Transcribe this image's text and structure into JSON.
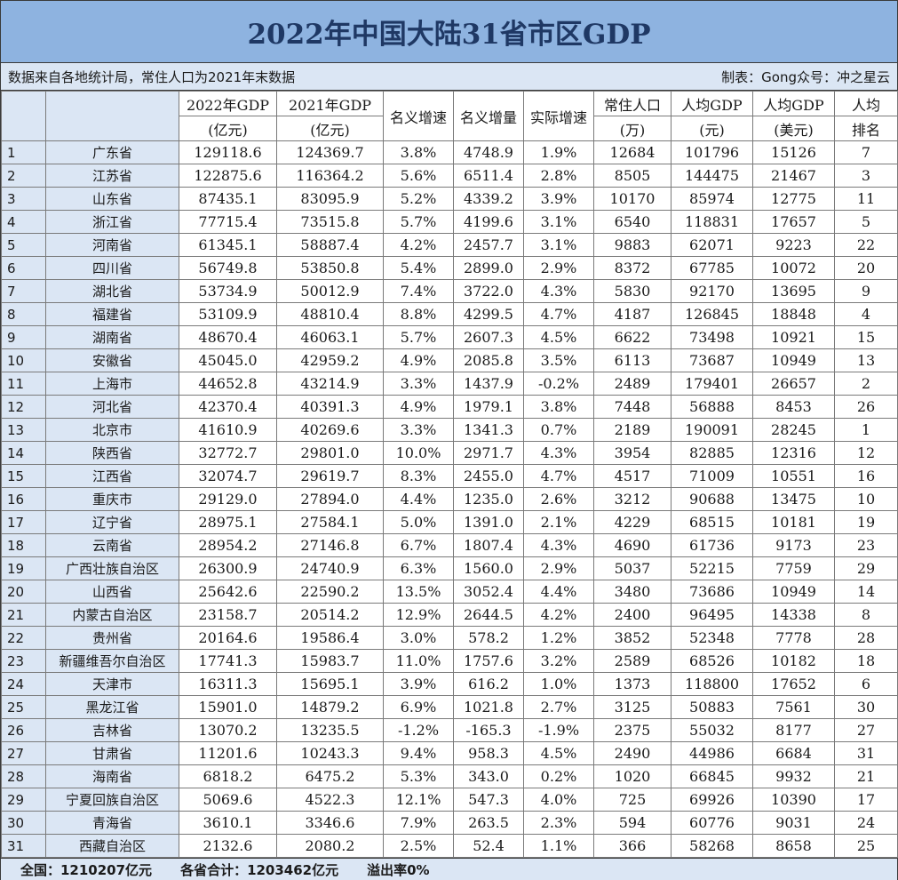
{
  "title": "2022年中国大陆31省市区GDP",
  "info": {
    "source": "数据来自各地统计局，常住人口为2021年末数据",
    "credit": "制表：Gong众号：冲之星云"
  },
  "headers": {
    "h0": "",
    "h1": "",
    "gdp2022_a": "2022年GDP",
    "gdp2022_b": "(亿元)",
    "gdp2021_a": "2021年GDP",
    "gdp2021_b": "(亿元)",
    "nominal_growth": "名义增速",
    "nominal_increase": "名义增量",
    "real_growth": "实际增速",
    "pop_a": "常住人口",
    "pop_b": "(万)",
    "pc_cny_a": "人均GDP",
    "pc_cny_b": "(元)",
    "pc_usd_a": "人均GDP",
    "pc_usd_b": "(美元)",
    "rank_a": "人均",
    "rank_b": "排名"
  },
  "rows": [
    [
      "1",
      "广东省",
      "129118.6",
      "124369.7",
      "3.8%",
      "4748.9",
      "1.9%",
      "12684",
      "101796",
      "15126",
      "7"
    ],
    [
      "2",
      "江苏省",
      "122875.6",
      "116364.2",
      "5.6%",
      "6511.4",
      "2.8%",
      "8505",
      "144475",
      "21467",
      "3"
    ],
    [
      "3",
      "山东省",
      "87435.1",
      "83095.9",
      "5.2%",
      "4339.2",
      "3.9%",
      "10170",
      "85974",
      "12775",
      "11"
    ],
    [
      "4",
      "浙江省",
      "77715.4",
      "73515.8",
      "5.7%",
      "4199.6",
      "3.1%",
      "6540",
      "118831",
      "17657",
      "5"
    ],
    [
      "5",
      "河南省",
      "61345.1",
      "58887.4",
      "4.2%",
      "2457.7",
      "3.1%",
      "9883",
      "62071",
      "9223",
      "22"
    ],
    [
      "6",
      "四川省",
      "56749.8",
      "53850.8",
      "5.4%",
      "2899.0",
      "2.9%",
      "8372",
      "67785",
      "10072",
      "20"
    ],
    [
      "7",
      "湖北省",
      "53734.9",
      "50012.9",
      "7.4%",
      "3722.0",
      "4.3%",
      "5830",
      "92170",
      "13695",
      "9"
    ],
    [
      "8",
      "福建省",
      "53109.9",
      "48810.4",
      "8.8%",
      "4299.5",
      "4.7%",
      "4187",
      "126845",
      "18848",
      "4"
    ],
    [
      "9",
      "湖南省",
      "48670.4",
      "46063.1",
      "5.7%",
      "2607.3",
      "4.5%",
      "6622",
      "73498",
      "10921",
      "15"
    ],
    [
      "10",
      "安徽省",
      "45045.0",
      "42959.2",
      "4.9%",
      "2085.8",
      "3.5%",
      "6113",
      "73687",
      "10949",
      "13"
    ],
    [
      "11",
      "上海市",
      "44652.8",
      "43214.9",
      "3.3%",
      "1437.9",
      "-0.2%",
      "2489",
      "179401",
      "26657",
      "2"
    ],
    [
      "12",
      "河北省",
      "42370.4",
      "40391.3",
      "4.9%",
      "1979.1",
      "3.8%",
      "7448",
      "56888",
      "8453",
      "26"
    ],
    [
      "13",
      "北京市",
      "41610.9",
      "40269.6",
      "3.3%",
      "1341.3",
      "0.7%",
      "2189",
      "190091",
      "28245",
      "1"
    ],
    [
      "14",
      "陕西省",
      "32772.7",
      "29801.0",
      "10.0%",
      "2971.7",
      "4.3%",
      "3954",
      "82885",
      "12316",
      "12"
    ],
    [
      "15",
      "江西省",
      "32074.7",
      "29619.7",
      "8.3%",
      "2455.0",
      "4.7%",
      "4517",
      "71009",
      "10551",
      "16"
    ],
    [
      "16",
      "重庆市",
      "29129.0",
      "27894.0",
      "4.4%",
      "1235.0",
      "2.6%",
      "3212",
      "90688",
      "13475",
      "10"
    ],
    [
      "17",
      "辽宁省",
      "28975.1",
      "27584.1",
      "5.0%",
      "1391.0",
      "2.1%",
      "4229",
      "68515",
      "10181",
      "19"
    ],
    [
      "18",
      "云南省",
      "28954.2",
      "27146.8",
      "6.7%",
      "1807.4",
      "4.3%",
      "4690",
      "61736",
      "9173",
      "23"
    ],
    [
      "19",
      "广西壮族自治区",
      "26300.9",
      "24740.9",
      "6.3%",
      "1560.0",
      "2.9%",
      "5037",
      "52215",
      "7759",
      "29"
    ],
    [
      "20",
      "山西省",
      "25642.6",
      "22590.2",
      "13.5%",
      "3052.4",
      "4.4%",
      "3480",
      "73686",
      "10949",
      "14"
    ],
    [
      "21",
      "内蒙古自治区",
      "23158.7",
      "20514.2",
      "12.9%",
      "2644.5",
      "4.2%",
      "2400",
      "96495",
      "14338",
      "8"
    ],
    [
      "22",
      "贵州省",
      "20164.6",
      "19586.4",
      "3.0%",
      "578.2",
      "1.2%",
      "3852",
      "52348",
      "7778",
      "28"
    ],
    [
      "23",
      "新疆维吾尔自治区",
      "17741.3",
      "15983.7",
      "11.0%",
      "1757.6",
      "3.2%",
      "2589",
      "68526",
      "10182",
      "18"
    ],
    [
      "24",
      "天津市",
      "16311.3",
      "15695.1",
      "3.9%",
      "616.2",
      "1.0%",
      "1373",
      "118800",
      "17652",
      "6"
    ],
    [
      "25",
      "黑龙江省",
      "15901.0",
      "14879.2",
      "6.9%",
      "1021.8",
      "2.7%",
      "3125",
      "50883",
      "7561",
      "30"
    ],
    [
      "26",
      "吉林省",
      "13070.2",
      "13235.5",
      "-1.2%",
      "-165.3",
      "-1.9%",
      "2375",
      "55032",
      "8177",
      "27"
    ],
    [
      "27",
      "甘肃省",
      "11201.6",
      "10243.3",
      "9.4%",
      "958.3",
      "4.5%",
      "2490",
      "44986",
      "6684",
      "31"
    ],
    [
      "28",
      "海南省",
      "6818.2",
      "6475.2",
      "5.3%",
      "343.0",
      "0.2%",
      "1020",
      "66845",
      "9932",
      "21"
    ],
    [
      "29",
      "宁夏回族自治区",
      "5069.6",
      "4522.3",
      "12.1%",
      "547.3",
      "4.0%",
      "725",
      "69926",
      "10390",
      "17"
    ],
    [
      "30",
      "青海省",
      "3610.1",
      "3346.6",
      "7.9%",
      "263.5",
      "2.3%",
      "594",
      "60776",
      "9031",
      "24"
    ],
    [
      "31",
      "西藏自治区",
      "2132.6",
      "2080.2",
      "2.5%",
      "52.4",
      "1.1%",
      "366",
      "58268",
      "8658",
      "25"
    ]
  ],
  "footer": {
    "national": "全国：1210207亿元",
    "sum": "各省合计：1203462亿元",
    "overflow": "溢出率0%"
  },
  "colors": {
    "title_bg": "#8eb3e0",
    "title_text": "#1f3864",
    "light_blue": "#dbe6f4"
  }
}
